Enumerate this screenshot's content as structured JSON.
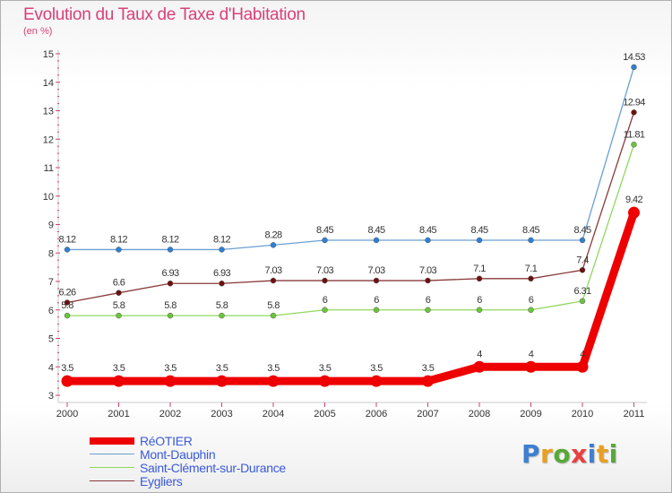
{
  "title": "Evolution du Taux de Taxe d'Habitation",
  "unit_label": "(en %)",
  "logo": {
    "text": "Proxiti",
    "colors": [
      "#3d7fd0",
      "#e8a020",
      "#58a838",
      "#e84040",
      "#3d7fd0",
      "#e8a020",
      "#58a838"
    ]
  },
  "chart_data": {
    "type": "line",
    "x": [
      2000,
      2001,
      2002,
      2003,
      2004,
      2005,
      2006,
      2007,
      2008,
      2009,
      2010,
      2011
    ],
    "ylim": [
      3,
      15
    ],
    "yticks": [
      3,
      4,
      5,
      6,
      7,
      8,
      9,
      10,
      11,
      12,
      13,
      14,
      15
    ],
    "grid": false,
    "legend_position": "bottom-left",
    "series": [
      {
        "name": "Mont-Dauphin",
        "color": "#6a9fd4",
        "point_color": "#2f7fd2",
        "values": [
          8.12,
          8.12,
          8.12,
          8.12,
          8.28,
          8.45,
          8.45,
          8.45,
          8.45,
          8.45,
          8.45,
          14.53
        ],
        "labels": [
          "8.12",
          "8.12",
          "8.12",
          "8.12",
          "8.28",
          "8.45",
          "8.45",
          "8.45",
          "8.45",
          "8.45",
          "8.45",
          "14.53"
        ]
      },
      {
        "name": "Eygliers",
        "color": "#8a3a3a",
        "point_color": "#6e1010",
        "values": [
          6.26,
          6.6,
          6.93,
          6.93,
          7.03,
          7.03,
          7.03,
          7.03,
          7.1,
          7.1,
          7.4,
          12.94
        ],
        "labels": [
          "6.26",
          "6.6",
          "6.93",
          "6.93",
          "7.03",
          "7.03",
          "7.03",
          "7.03",
          "7.1",
          "7.1",
          "7.4",
          "12.94"
        ]
      },
      {
        "name": "Saint-Clément-sur-Durance",
        "color": "#8ed860",
        "point_color": "#6cc43e",
        "values": [
          5.8,
          5.8,
          5.8,
          5.8,
          5.8,
          6,
          6,
          6,
          6,
          6,
          6.31,
          11.81
        ],
        "labels": [
          "5.8",
          "5.8",
          "5.8",
          "5.8",
          "5.8",
          "6",
          "6",
          "6",
          "6",
          "6",
          "6.31",
          "11.81"
        ]
      },
      {
        "name": "RéOTIER",
        "color": "#ee0000",
        "point_color": "#ee0000",
        "thick": true,
        "values": [
          3.5,
          3.5,
          3.5,
          3.5,
          3.5,
          3.5,
          3.5,
          3.5,
          4,
          4,
          4,
          9.42
        ],
        "labels": [
          "3.5",
          "3.5",
          "3.5",
          "3.5",
          "3.5",
          "3.5",
          "3.5",
          "3.5",
          "4",
          "4",
          "4",
          "9.42"
        ]
      }
    ],
    "legend_order": [
      "RéOTIER",
      "Mont-Dauphin",
      "Saint-Clément-sur-Durance",
      "Eygliers"
    ]
  }
}
